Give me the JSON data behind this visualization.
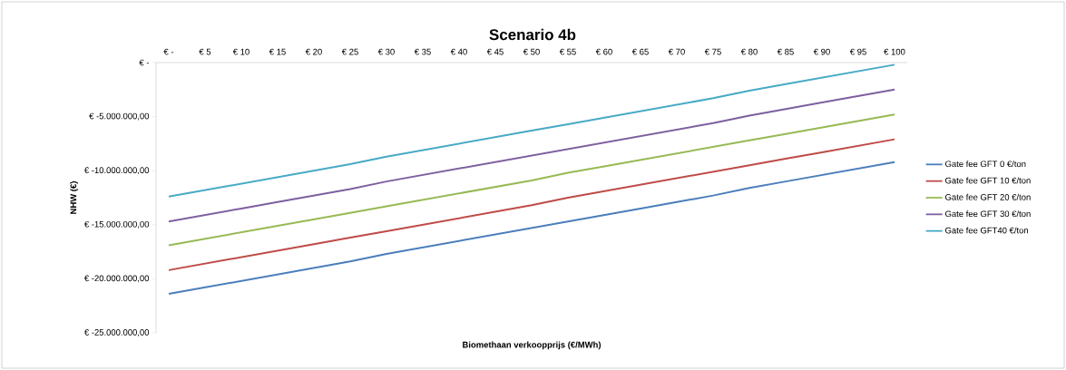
{
  "chart_data": {
    "type": "line",
    "title": "Scenario 4b",
    "xlabel": "Biomethaan verkoopprijs (€/MWh)",
    "ylabel": "NHW (€)",
    "categories": [
      "€ -",
      "€ 5",
      "€ 10",
      "€ 15",
      "€ 20",
      "€ 25",
      "€ 30",
      "€ 35",
      "€ 40",
      "€ 45",
      "€ 50",
      "€ 55",
      "€ 60",
      "€ 65",
      "€ 70",
      "€ 75",
      "€ 80",
      "€ 85",
      "€ 90",
      "€ 95",
      "€ 100"
    ],
    "series": [
      {
        "name": "Gate fee GFT 0 €/ton",
        "color": "#4a7ebb",
        "values": [
          -21400000,
          -20800000,
          -20200000,
          -19600000,
          -19000000,
          -18400000,
          -17700000,
          -17100000,
          -16500000,
          -15900000,
          -15300000,
          -14700000,
          -14100000,
          -13500000,
          -12900000,
          -12300000,
          -11600000,
          -11000000,
          -10400000,
          -9800000,
          -9200000
        ]
      },
      {
        "name": "Gate fee GFT 10 €/ton",
        "color": "#be4b48",
        "values": [
          -19200000,
          -18600000,
          -18000000,
          -17400000,
          -16800000,
          -16200000,
          -15600000,
          -15000000,
          -14400000,
          -13800000,
          -13200000,
          -12500000,
          -11900000,
          -11300000,
          -10700000,
          -10100000,
          -9500000,
          -8900000,
          -8300000,
          -7700000,
          -7100000
        ]
      },
      {
        "name": "Gate fee GFT 20 €/ton",
        "color": "#98b954",
        "values": [
          -16900000,
          -16300000,
          -15700000,
          -15100000,
          -14500000,
          -13900000,
          -13300000,
          -12700000,
          -12100000,
          -11500000,
          -10900000,
          -10200000,
          -9600000,
          -9000000,
          -8400000,
          -7800000,
          -7200000,
          -6600000,
          -6000000,
          -5400000,
          -4800000
        ]
      },
      {
        "name": "Gate fee GFT 30 €/ton",
        "color": "#7d60a0",
        "values": [
          -14700000,
          -14100000,
          -13500000,
          -12900000,
          -12300000,
          -11700000,
          -11000000,
          -10400000,
          -9800000,
          -9200000,
          -8600000,
          -8000000,
          -7400000,
          -6800000,
          -6200000,
          -5600000,
          -4900000,
          -4300000,
          -3700000,
          -3100000,
          -2500000
        ]
      },
      {
        "name": "Gate fee GFT40 €/ton",
        "color": "#46aac5",
        "values": [
          -12400000,
          -11800000,
          -11200000,
          -10600000,
          -10000000,
          -9400000,
          -8700000,
          -8100000,
          -7500000,
          -6900000,
          -6300000,
          -5700000,
          -5100000,
          -4500000,
          -3900000,
          -3300000,
          -2600000,
          -2000000,
          -1400000,
          -800000,
          -200000
        ]
      }
    ],
    "ylim": [
      -25000000,
      0
    ],
    "yticks": [
      {
        "value": 0,
        "label": "€ -"
      },
      {
        "value": -5000000,
        "label": "€ -5.000.000,00"
      },
      {
        "value": -10000000,
        "label": "€ -10.000.000,00"
      },
      {
        "value": -15000000,
        "label": "€ -15.000.000,00"
      },
      {
        "value": -20000000,
        "label": "€ -20.000.000,00"
      },
      {
        "value": -25000000,
        "label": "€ -25.000.000,00"
      }
    ],
    "grid": false,
    "legend": "right",
    "marker": "none",
    "line_style": "solid"
  }
}
